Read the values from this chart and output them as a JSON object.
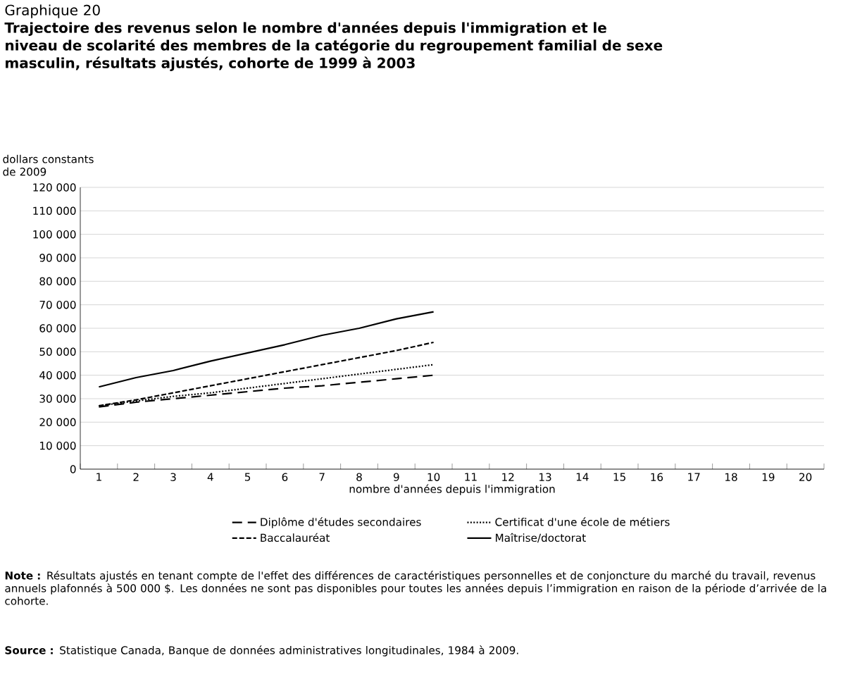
{
  "chart_data": {
    "type": "line",
    "title": "Graphique 20",
    "subtitle": "Trajectoire des revenus selon le nombre d'années depuis l'immigration et le niveau de scolarité des membres de la catégorie du regroupement familial de sexe masculin, résultats ajustés, cohorte de 1999 à 2003",
    "ylabel": "dollars constants de 2009",
    "xlabel": "nombre d'années depuis l'immigration",
    "categories": [
      "1",
      "2",
      "3",
      "4",
      "5",
      "6",
      "7",
      "8",
      "9",
      "10",
      "11",
      "12",
      "13",
      "14",
      "15",
      "16",
      "17",
      "18",
      "19",
      "20"
    ],
    "series": [
      {
        "name": "Diplôme d'études secondaires",
        "color": "#000000",
        "line_style": "dashed",
        "values": [
          26500,
          28500,
          30000,
          31500,
          33000,
          34500,
          35500,
          37000,
          38500,
          40000,
          null,
          null,
          null,
          null,
          null,
          null,
          null,
          null,
          null,
          null
        ]
      },
      {
        "name": "Certificat d'une école de  métiers",
        "color": "#000000",
        "line_style": "dotted",
        "values": [
          27000,
          29000,
          31000,
          32500,
          34500,
          36500,
          38500,
          40500,
          42500,
          44500,
          null,
          null,
          null,
          null,
          null,
          null,
          null,
          null,
          null,
          null
        ]
      },
      {
        "name": "Baccalauréat",
        "color": "#000000",
        "line_style": "dashed",
        "values": [
          27000,
          29500,
          32500,
          35500,
          38500,
          41500,
          44500,
          47500,
          50500,
          54000,
          null,
          null,
          null,
          null,
          null,
          null,
          null,
          null,
          null,
          null
        ]
      },
      {
        "name": "Maîtrise/doctorat",
        "color": "#000000",
        "line_style": "solid",
        "values": [
          35000,
          39000,
          42000,
          46000,
          49500,
          53000,
          57000,
          60000,
          64000,
          67000,
          null,
          null,
          null,
          null,
          null,
          null,
          null,
          null,
          null,
          null
        ]
      }
    ],
    "ylim": [
      0,
      120000
    ],
    "yticks": [
      0,
      {
        "value": 10000,
        "label": "10 000"
      },
      {
        "value": 20000,
        "label": "20 000"
      },
      {
        "value": 30000,
        "label": "30 000"
      },
      {
        "value": 40000,
        "label": "40 000"
      },
      {
        "value": 50000,
        "label": "50 000"
      },
      {
        "value": 60000,
        "label": "60 000"
      },
      {
        "value": 70000,
        "label": "70 000"
      },
      {
        "value": 80000,
        "label": "80 000"
      },
      {
        "value": 90000,
        "label": "90 000"
      },
      {
        "value": 100000,
        "label": "100 000"
      },
      {
        "value": 110000,
        "label": "110 000"
      },
      {
        "value": 120000,
        "label": "120 000"
      }
    ],
    "grid": "y",
    "legend": "bottom",
    "marker": "none",
    "annotations": [
      "**Note :** Résultats ajustés en tenant compte de l'effet des différences de caractéristiques personnelles et de conjoncture du marché du travail, revenus annuels plafonnés à 500 000 $. Les données ne sont pas disponibles pour toutes les années depuis l’immigration en raison de la période d’arrivée de la cohorte.",
      "**Source :** Statistique Canada, Banque de données administratives longitudinales, 1984 à 2009."
    ]
  }
}
